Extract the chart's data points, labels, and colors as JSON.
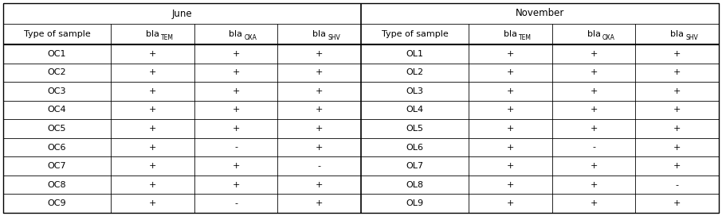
{
  "june_header": "June",
  "november_header": "November",
  "june_data": [
    [
      "OC1",
      "+",
      "+",
      "+"
    ],
    [
      "OC2",
      "+",
      "+",
      "+"
    ],
    [
      "OC3",
      "+",
      "+",
      "+"
    ],
    [
      "OC4",
      "+",
      "+",
      "+"
    ],
    [
      "OC5",
      "+",
      "+",
      "+"
    ],
    [
      "OC6",
      "+",
      "-",
      "+"
    ],
    [
      "OC7",
      "+",
      "+",
      "-"
    ],
    [
      "OC8",
      "+",
      "+",
      "+"
    ],
    [
      "OC9",
      "+",
      "-",
      "+"
    ]
  ],
  "november_data": [
    [
      "OL1",
      "+",
      "+",
      "+"
    ],
    [
      "OL2",
      "+",
      "+",
      "+"
    ],
    [
      "OL3",
      "+",
      "+",
      "+"
    ],
    [
      "OL4",
      "+",
      "+",
      "+"
    ],
    [
      "OL5",
      "+",
      "+",
      "+"
    ],
    [
      "OL6",
      "+",
      "-",
      "+"
    ],
    [
      "OL7",
      "+",
      "+",
      "+"
    ],
    [
      "OL8",
      "+",
      "+",
      "-"
    ],
    [
      "OL9",
      "+",
      "+",
      "+"
    ]
  ],
  "bg_color": "#ffffff",
  "text_color": "#000000",
  "font_size": 8.0,
  "sub_font_size": 5.5,
  "header_font_size": 8.5
}
